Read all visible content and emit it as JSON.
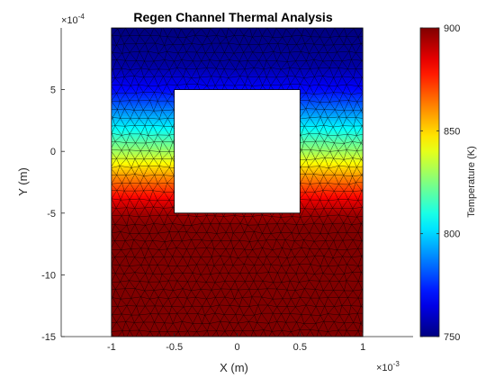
{
  "chart_data": {
    "type": "heatmap",
    "title": "Regen Channel Thermal Analysis",
    "xlabel": "X (m)",
    "ylabel": "Y (m)",
    "x_multiplier": {
      "base": "×10",
      "exponent": "-3"
    },
    "y_multiplier": {
      "base": "×10",
      "exponent": "-4"
    },
    "xlim": [
      -0.0014,
      0.0014
    ],
    "ylim": [
      -0.0015,
      0.001
    ],
    "xticks": [
      -0.001,
      -0.0005,
      0,
      0.0005,
      0.001
    ],
    "xtick_labels": [
      "-1",
      "-0.5",
      "0",
      "0.5",
      "1"
    ],
    "yticks": [
      -0.0015,
      -0.001,
      -0.0005,
      0,
      0.0005
    ],
    "ytick_labels": [
      "-15",
      "-10",
      "-5",
      "0",
      "5"
    ],
    "domain": {
      "outer": {
        "x": [
          -0.001,
          0.001
        ],
        "y": [
          -0.0015,
          0.001
        ]
      },
      "hole": {
        "x": [
          -0.0005,
          0.0005
        ],
        "y": [
          -0.0005,
          0.0005
        ]
      }
    },
    "colorbar": {
      "label": "Temperature (K)",
      "colormap": "jet",
      "range": [
        750,
        900
      ],
      "ticks": [
        750,
        800,
        850,
        900
      ],
      "tick_labels": [
        "750",
        "800",
        "850",
        "900"
      ]
    },
    "temperature_profile": {
      "description": "",
      "y": [
        -0.0015,
        -0.0006,
        -0.0005,
        -0.0004,
        -0.0002,
        0,
        0.0002,
        0.0004,
        0.0005,
        0.0007,
        0.001
      ],
      "temperature": [
        900,
        900,
        895,
        885,
        860,
        830,
        805,
        780,
        770,
        755,
        750
      ]
    },
    "mesh": {
      "edge_color": "#000000",
      "element_type": "triangle"
    },
    "grid": false
  }
}
